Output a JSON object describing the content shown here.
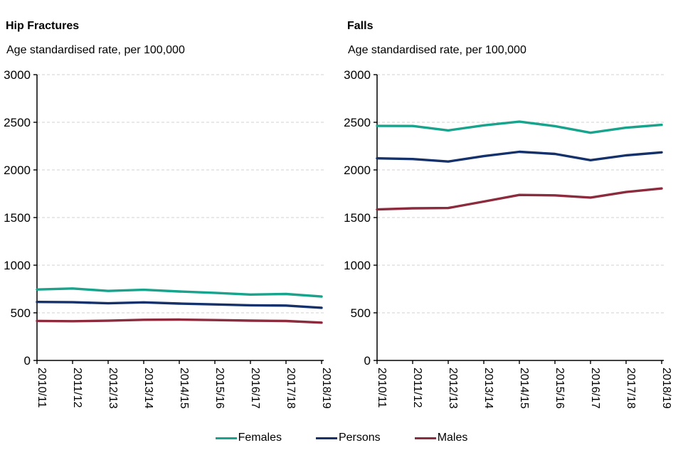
{
  "colors": {
    "females": "#18A48C",
    "persons": "#14316B",
    "males": "#8C2B3D",
    "gridline": "#D9D9D9",
    "axis": "#000000",
    "text": "#000000"
  },
  "legend": {
    "position": "bottom",
    "items": [
      "Females",
      "Persons",
      "Males"
    ]
  },
  "chart_data": [
    {
      "type": "line",
      "title": "Hip Fractures",
      "subtitle": "Age standardised rate, per 100,000",
      "categories": [
        "2010/11",
        "2011/12",
        "2012/13",
        "2013/14",
        "2014/15",
        "2015/16",
        "2016/17",
        "2017/18",
        "2018/19"
      ],
      "series": [
        {
          "name": "Females",
          "color": "#18A48C",
          "values": [
            745,
            755,
            730,
            742,
            724,
            710,
            692,
            698,
            671
          ]
        },
        {
          "name": "Persons",
          "color": "#14316B",
          "values": [
            614,
            611,
            600,
            610,
            597,
            588,
            579,
            576,
            553
          ]
        },
        {
          "name": "Males",
          "color": "#8C2B3D",
          "values": [
            415,
            412,
            417,
            427,
            429,
            424,
            418,
            414,
            397
          ]
        }
      ],
      "ylim": [
        0,
        3000
      ],
      "ytick_step": 500,
      "grid": "dashed-horizontal",
      "x_label_rotation": 90
    },
    {
      "type": "line",
      "title": "Falls",
      "subtitle": "Age standardised rate, per 100,000",
      "categories": [
        "2010/11",
        "2011/12",
        "2012/13",
        "2013/14",
        "2014/15",
        "2015/16",
        "2016/17",
        "2017/18",
        "2018/19"
      ],
      "series": [
        {
          "name": "Females",
          "color": "#18A48C",
          "values": [
            2462,
            2461,
            2415,
            2468,
            2507,
            2460,
            2390,
            2443,
            2473
          ]
        },
        {
          "name": "Persons",
          "color": "#14316B",
          "values": [
            2122,
            2114,
            2088,
            2145,
            2190,
            2168,
            2102,
            2153,
            2184
          ]
        },
        {
          "name": "Males",
          "color": "#8C2B3D",
          "values": [
            1585,
            1597,
            1600,
            1668,
            1737,
            1733,
            1710,
            1768,
            1805
          ]
        }
      ],
      "ylim": [
        0,
        3000
      ],
      "ytick_step": 500,
      "grid": "dashed-horizontal",
      "x_label_rotation": 90
    }
  ]
}
